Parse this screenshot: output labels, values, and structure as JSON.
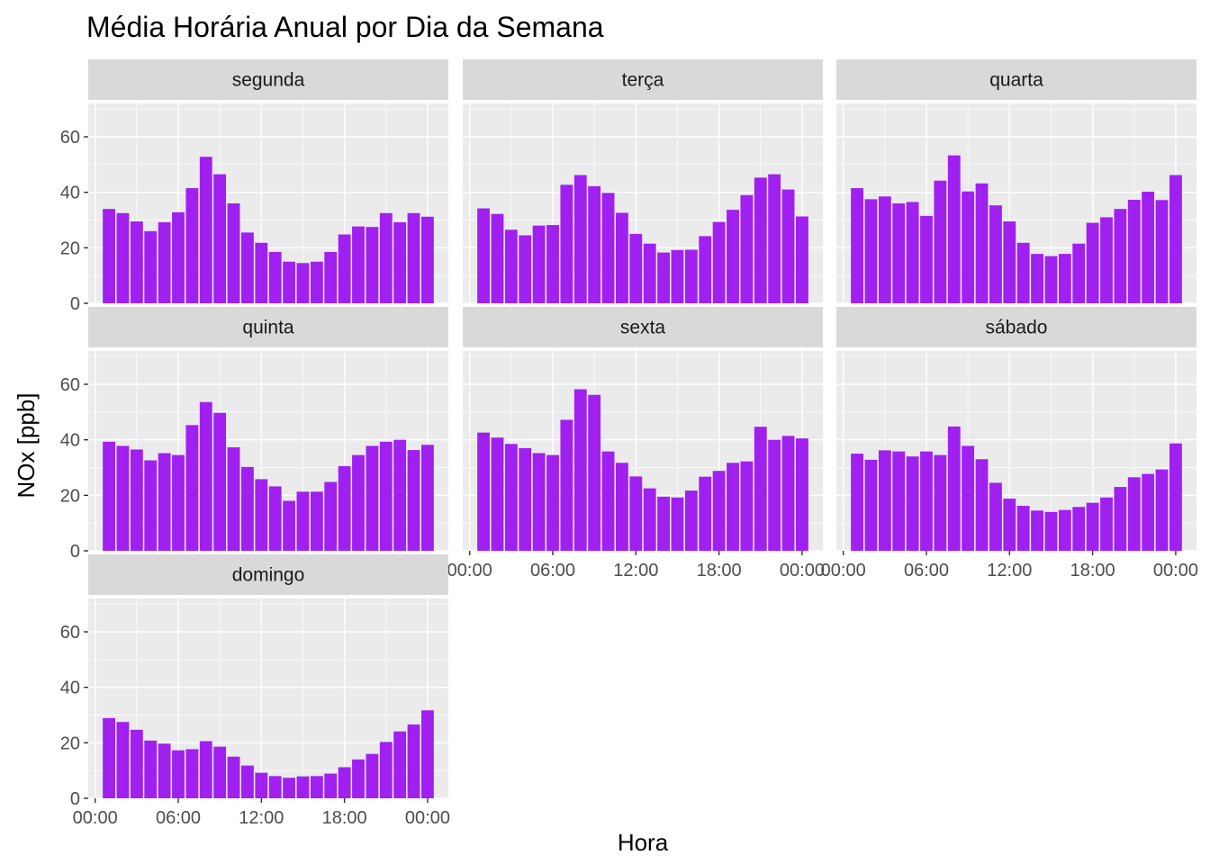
{
  "chart_data": {
    "type": "bar",
    "title": "Média Horária Anual por Dia da Semana",
    "xlabel": "Hora",
    "ylabel": "NOx [ppb]",
    "ylim": [
      0,
      72
    ],
    "y_ticks": [
      "0",
      "20",
      "40",
      "60"
    ],
    "y_tick_values": [
      0,
      20,
      40,
      60
    ],
    "x_ticks": [
      "00:00",
      "06:00",
      "12:00",
      "18:00",
      "00:00"
    ],
    "x_tick_hours": [
      0,
      6,
      12,
      18,
      24
    ],
    "x_range_hours": [
      -0.5,
      25.5
    ],
    "bar_hours": [
      1,
      2,
      3,
      4,
      5,
      6,
      7,
      8,
      9,
      10,
      11,
      12,
      13,
      14,
      15,
      16,
      17,
      18,
      19,
      20,
      21,
      22,
      23,
      24
    ],
    "bar_color": "#A020F0",
    "panel_bg": "#EBEBEB",
    "strip_bg": "#D9D9D9",
    "grid": true,
    "panels": [
      {
        "name": "segunda",
        "values": [
          34,
          32.5,
          29.5,
          26,
          29.2,
          32.8,
          41.5,
          52.8,
          46.5,
          36,
          25.5,
          21.8,
          18.5,
          15,
          14.5,
          15,
          18.5,
          24.8,
          27.7,
          27.5,
          32.5,
          29.2,
          32.5,
          31.2
        ]
      },
      {
        "name": "terça",
        "values": [
          34.2,
          32.2,
          26.5,
          24.5,
          28,
          28.2,
          42.7,
          46.2,
          42.2,
          39.8,
          32.6,
          25,
          21.5,
          18.3,
          19.2,
          19.3,
          24.2,
          29.3,
          33.7,
          39,
          45.3,
          46.5,
          41,
          31.3
        ]
      },
      {
        "name": "quarta",
        "values": [
          41.5,
          37.5,
          38.5,
          36,
          36.5,
          31.5,
          44.2,
          53.3,
          40.3,
          43.2,
          35.3,
          29.5,
          21.8,
          17.8,
          17,
          17.8,
          21.5,
          29,
          31,
          34,
          37.3,
          40.2,
          37.2,
          46.2
        ]
      },
      {
        "name": "quinta",
        "values": [
          39.3,
          37.8,
          36.5,
          32.6,
          35.2,
          34.5,
          45.3,
          53.6,
          49.7,
          37.3,
          30.2,
          25.8,
          23.2,
          18,
          21.3,
          21.3,
          24.8,
          30.5,
          34.5,
          37.8,
          39.3,
          40,
          36.3,
          38.2
        ]
      },
      {
        "name": "sexta",
        "values": [
          42.6,
          40.8,
          38.5,
          37,
          35.2,
          34.5,
          47.2,
          58.2,
          56.2,
          35.8,
          31.7,
          26.8,
          22.5,
          19.5,
          19.2,
          21.7,
          26.7,
          28.8,
          31.7,
          32.2,
          44.7,
          40,
          41.4,
          40.5
        ]
      },
      {
        "name": "sábado",
        "values": [
          35,
          32.8,
          36.2,
          35.8,
          34,
          35.8,
          34.5,
          44.8,
          37.8,
          33,
          24.5,
          18.8,
          16.2,
          14.5,
          14,
          14.7,
          15.8,
          17.3,
          19.2,
          23,
          26.5,
          27.7,
          29.3,
          38.7
        ]
      },
      {
        "name": "domingo",
        "values": [
          28.9,
          27.5,
          24.7,
          20.8,
          19.7,
          17.3,
          17.7,
          20.6,
          18.6,
          15,
          11.8,
          9.2,
          8,
          7.4,
          7.9,
          8,
          8.9,
          11.2,
          14,
          16,
          20.3,
          24.1,
          26.6,
          31.7
        ]
      }
    ]
  }
}
